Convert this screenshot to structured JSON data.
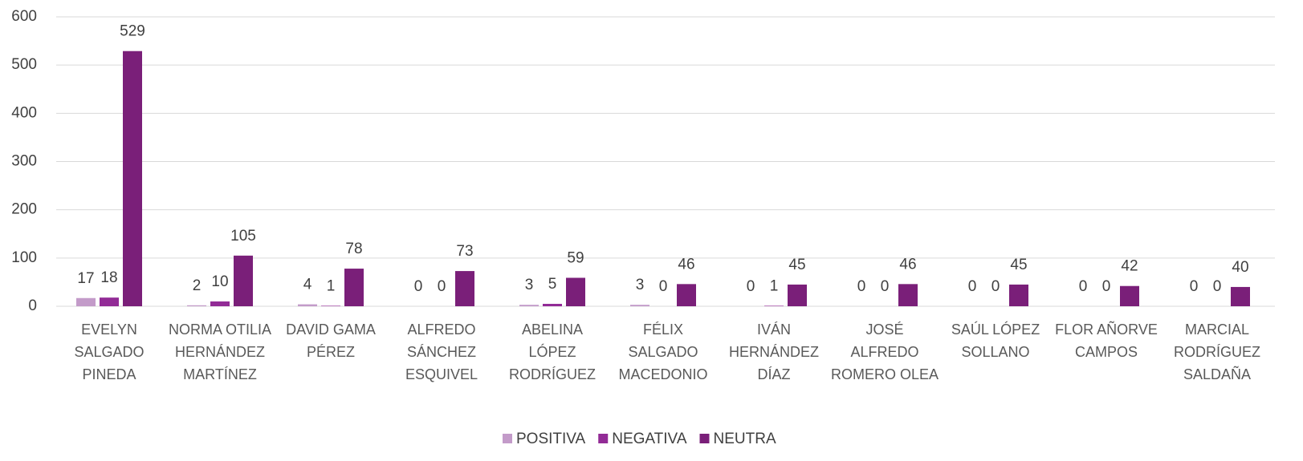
{
  "chart_data": {
    "type": "bar",
    "categories": [
      "EVELYN SALGADO PINEDA",
      "NORMA OTILIA HERNÁNDEZ MARTÍNEZ",
      "DAVID GAMA PÉREZ",
      "ALFREDO SÁNCHEZ ESQUIVEL",
      "ABELINA LÓPEZ RODRÍGUEZ",
      "FÉLIX SALGADO MACEDONIO",
      "IVÁN HERNÁNDEZ DÍAZ",
      "JOSÉ ALFREDO ROMERO OLEA",
      "SAÚL LÓPEZ SOLLANO",
      "FLOR AÑORVE CAMPOS",
      "MARCIAL RODRÍGUEZ SALDAÑA"
    ],
    "series": [
      {
        "name": "POSITIVA",
        "color": "#c39bc9",
        "values": [
          17,
          2,
          4,
          0,
          3,
          3,
          0,
          0,
          0,
          0,
          0
        ]
      },
      {
        "name": "NEGATIVA",
        "color": "#922b96",
        "values": [
          18,
          10,
          1,
          0,
          5,
          0,
          1,
          0,
          0,
          0,
          0
        ]
      },
      {
        "name": "NEUTRA",
        "color": "#7a1f79",
        "values": [
          529,
          105,
          78,
          73,
          59,
          46,
          45,
          46,
          45,
          42,
          40
        ]
      }
    ],
    "ylim": [
      0,
      600
    ],
    "yticks": [
      0,
      100,
      200,
      300,
      400,
      500,
      600
    ],
    "grid": true,
    "legend": "bottom"
  }
}
